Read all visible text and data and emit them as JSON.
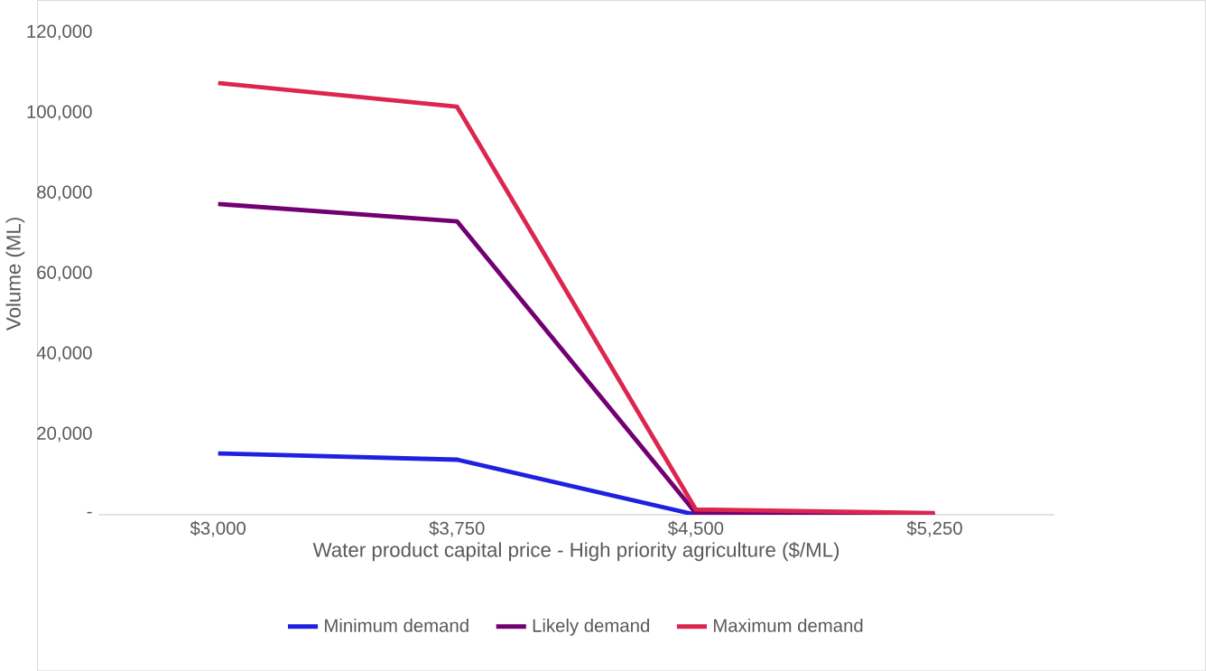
{
  "chart_data": {
    "type": "line",
    "xlabel": "Water product capital price - High priority agriculture ($/ML)",
    "ylabel": "Volume (ML)",
    "categories": [
      "$3,000",
      "$3,750",
      "$4,500",
      "$5,250"
    ],
    "series": [
      {
        "name": "Minimum demand",
        "color": "#2020e0",
        "values": [
          15250,
          13700,
          0,
          0
        ]
      },
      {
        "name": "Likely demand",
        "color": "#720072",
        "values": [
          77300,
          73000,
          400,
          0
        ]
      },
      {
        "name": "Maximum demand",
        "color": "#dc2650",
        "values": [
          107400,
          101500,
          1300,
          400
        ]
      }
    ],
    "ylim": [
      0,
      120000
    ],
    "yticks": [
      {
        "value": 0,
        "label": "-"
      },
      {
        "value": 20000,
        "label": "20,000"
      },
      {
        "value": 40000,
        "label": "40,000"
      },
      {
        "value": 60000,
        "label": "60,000"
      },
      {
        "value": 80000,
        "label": "80,000"
      },
      {
        "value": 100000,
        "label": "100,000"
      },
      {
        "value": 120000,
        "label": "120,000"
      }
    ],
    "legend": "bottom",
    "marker": "none",
    "line_style": "solid",
    "grid": false
  }
}
